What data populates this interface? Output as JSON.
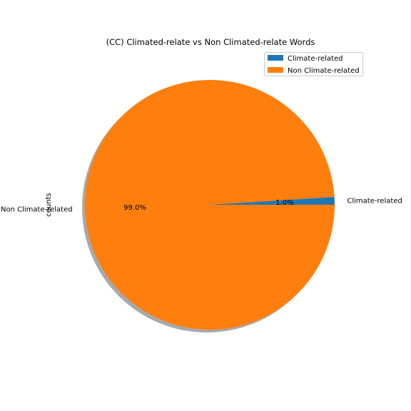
{
  "chart_data": {
    "type": "pie",
    "title": "(CC) Climated-relate vs Non Climated-relate Words",
    "ylabel": "counts",
    "categories": [
      "Climate-related",
      "Non Climate-related"
    ],
    "values": [
      1.0,
      99.0
    ],
    "percent_labels": [
      "1.0%",
      "99.0%"
    ],
    "colors": [
      "#1f77b4",
      "#ff7f0e"
    ],
    "shadow": true,
    "legend": {
      "placement": "top-right",
      "entries": [
        "Climate-related",
        "Non Climate-related"
      ]
    }
  }
}
